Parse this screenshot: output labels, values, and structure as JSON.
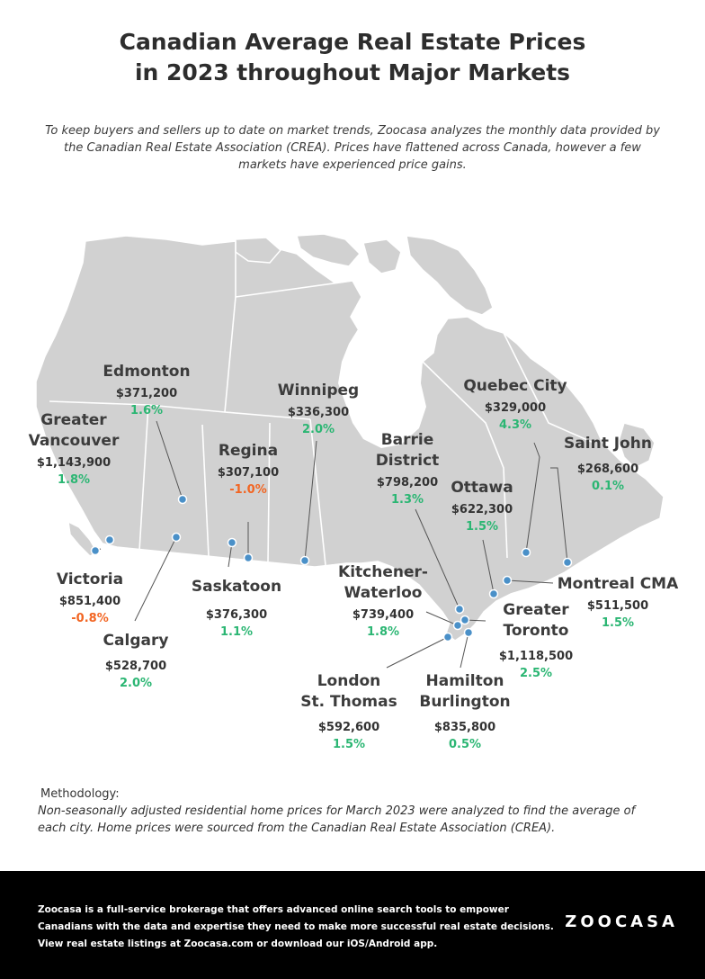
{
  "title": {
    "line1": "Canadian Average Real Estate Prices",
    "line2": "in 2023 throughout Major Markets"
  },
  "intro": {
    "line1": "To keep buyers and sellers up to date on market trends, Zoocasa analyzes the monthly data provided by",
    "line2": "the Canadian Real Estate Association (CREA). Prices have flattened across Canada, however a few",
    "line3": "markets have experienced price gains."
  },
  "colors": {
    "map_fill": "#d1d1d1",
    "marker": "#4a90c8",
    "gain": "#2bb673",
    "loss": "#f26522",
    "footer_bg": "#000000"
  },
  "cities": {
    "edmonton": {
      "name1": "Edmonton",
      "price": "$371,200",
      "change": "1.6%"
    },
    "vancouver": {
      "name1": "Greater",
      "name2": "Vancouver",
      "price": "$1,143,900",
      "change": "1.8%"
    },
    "victoria": {
      "name1": "Victoria",
      "price": "$851,400",
      "change": "-0.8%"
    },
    "calgary": {
      "name1": "Calgary",
      "price": "$528,700",
      "change": "2.0%"
    },
    "regina": {
      "name1": "Regina",
      "price": "$307,100",
      "change": "-1.0%"
    },
    "saskatoon": {
      "name1": "Saskatoon",
      "price": "$376,300",
      "change": "1.1%"
    },
    "winnipeg": {
      "name1": "Winnipeg",
      "price": "$336,300",
      "change": "2.0%"
    },
    "barrie": {
      "name1": "Barrie",
      "name2": "District",
      "price": "$798,200",
      "change": "1.3%"
    },
    "kitchener": {
      "name1": "Kitchener-",
      "name2": "Waterloo",
      "price": "$739,400",
      "change": "1.8%"
    },
    "london": {
      "name1": "London",
      "name2": "St. Thomas",
      "price": "$592,600",
      "change": "1.5%"
    },
    "hamilton": {
      "name1": "Hamilton",
      "name2": "Burlington",
      "price": "$835,800",
      "change": "0.5%"
    },
    "toronto": {
      "name1": "Greater",
      "name2": "Toronto",
      "price": "$1,118,500",
      "change": "2.5%"
    },
    "ottawa": {
      "name1": "Ottawa",
      "price": "$622,300",
      "change": "1.5%"
    },
    "quebec": {
      "name1": "Quebec City",
      "price": "$329,000",
      "change": "4.3%"
    },
    "saintjohn": {
      "name1": "Saint John",
      "price": "$268,600",
      "change": "0.1%"
    },
    "montreal": {
      "name1": "Montreal CMA",
      "price": "$511,500",
      "change": "1.5%"
    }
  },
  "methodology": {
    "heading": "Methodology:",
    "line1": "Non-seasonally adjusted residential home prices for March 2023 were analyzed to find the average of",
    "line2": "each city. Home prices were sourced from the Canadian Real Estate Association (CREA)."
  },
  "footer": {
    "line1": "Zoocasa is a full-service brokerage that offers advanced online search tools to empower",
    "line2": "Canadians with the data and expertise they need to make more successful real estate decisions.",
    "line3": "View real estate listings at Zoocasa.com or download our iOS/Android app.",
    "logo": "ZOOCASA"
  }
}
